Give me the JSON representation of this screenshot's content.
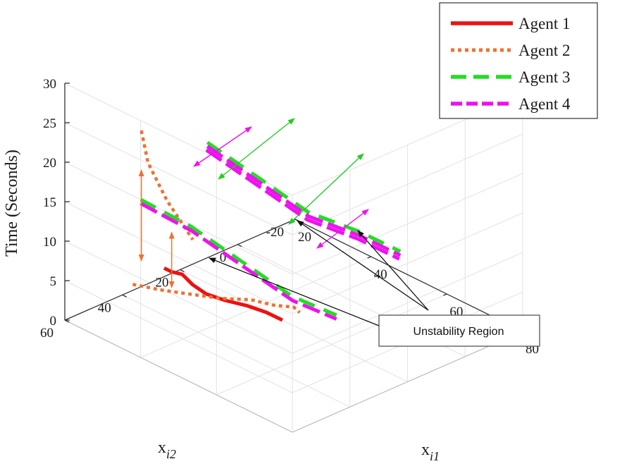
{
  "chart_data": {
    "type": "line",
    "projection": "3d",
    "x": {
      "label_base": "x",
      "label_sub": "i1",
      "range": [
        20,
        80
      ],
      "ticks": [
        20,
        40,
        60,
        80
      ]
    },
    "y": {
      "label_base": "x",
      "label_sub": "i2",
      "range": [
        -20,
        60
      ],
      "ticks": [
        -20,
        0,
        20,
        40,
        60
      ]
    },
    "z": {
      "label": "Time (Seconds)",
      "range": [
        0,
        30
      ],
      "ticks": [
        0,
        5,
        10,
        15,
        20,
        25,
        30
      ]
    },
    "grid": true,
    "legend_position": "top-right",
    "series": [
      {
        "name": "Agent 1",
        "color": "#ee1111",
        "style": "solid",
        "points": [
          [
            31,
            40,
            6
          ],
          [
            33,
            40,
            6
          ],
          [
            35,
            39,
            6
          ],
          [
            37,
            38,
            5
          ],
          [
            39,
            36,
            4
          ],
          [
            41,
            32,
            3
          ],
          [
            43,
            27,
            2
          ],
          [
            45,
            23,
            1
          ],
          [
            47,
            20,
            0
          ]
        ]
      },
      {
        "name": "Agent 2",
        "color": "#f07030",
        "style": "dotted",
        "points": [
          [
            [
              25,
              40,
              22
            ],
            [
              26,
              39,
              18
            ],
            [
              28,
              35,
              13
            ],
            [
              31,
              30,
              8
            ]
          ],
          [
            [
              25,
              43,
              3
            ],
            [
              30,
              40,
              3
            ],
            [
              35,
              36,
              3
            ],
            [
              40,
              32,
              3
            ],
            [
              44,
              27,
              3
            ],
            [
              46,
              22,
              2
            ],
            [
              47,
              16,
              1
            ],
            [
              47,
              14,
              0
            ]
          ]
        ]
      },
      {
        "name": "Agent 3",
        "color": "#22dd22",
        "style": "dashed",
        "points": [
          [
            [
              40,
              60,
              20
            ],
            [
              45,
              49,
              16
            ],
            [
              50,
              38,
              11
            ],
            [
              55,
              27,
              6
            ],
            [
              59,
              17,
              3
            ]
          ],
          [
            [
              50,
              50,
              28
            ],
            [
              55,
              39,
              23
            ],
            [
              60,
              28,
              18
            ],
            [
              65,
              17,
              15
            ],
            [
              69,
              8,
              12
            ]
          ]
        ]
      },
      {
        "name": "Agent 4",
        "color": "#ee11ee",
        "style": "dashdot",
        "points": [
          [
            [
              40,
              60,
              19.5
            ],
            [
              45,
              49,
              15.5
            ],
            [
              50,
              38,
              10.5
            ],
            [
              55,
              27,
              5.5
            ],
            [
              59,
              17,
              2.5
            ]
          ],
          [
            [
              50,
              50,
              27.5
            ],
            [
              55,
              39,
              22.5
            ],
            [
              60,
              28,
              17.5
            ],
            [
              65,
              17,
              14.5
            ],
            [
              69,
              8,
              11.5
            ]
          ],
          [
            [
              52,
              53,
              28
            ],
            [
              57,
              42,
              23
            ],
            [
              62,
              31,
              18
            ],
            [
              67,
              20,
              15
            ],
            [
              71,
              11,
              12
            ]
          ]
        ]
      }
    ],
    "annotation": {
      "text": "Unstability Region"
    }
  }
}
